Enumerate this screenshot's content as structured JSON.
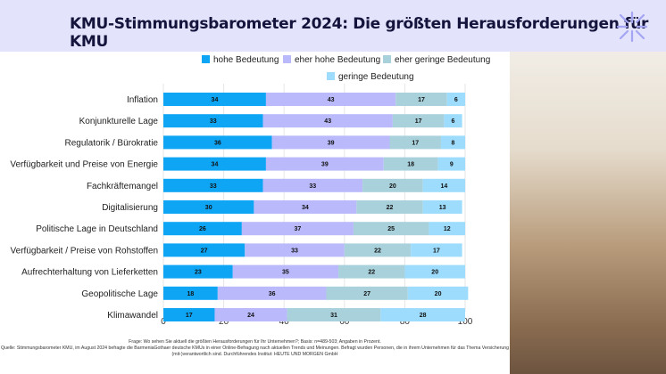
{
  "title": "KMU-Stimmungsbarometer 2024: Die größten Herausforderungen für KMU",
  "colors": {
    "header": "#e3e3fb",
    "hohe": "#0ea5f5",
    "eher_hohe": "#b9b9fb",
    "eher_geringe": "#a9d1dc",
    "geringe": "#9ddcfc"
  },
  "chart_data": {
    "type": "bar",
    "orientation": "horizontal-stacked",
    "categories": [
      "Inflation",
      "Konjunkturelle Lage",
      "Regulatorik / Bürokratie",
      "Verfügbarkeit und Preise von Energie",
      "Fachkräftemangel",
      "Digitalisierung",
      "Politische Lage in Deutschland",
      "Verfügbarkeit / Preise von Rohstoffen",
      "Aufrechterhaltung von Lieferketten",
      "Geopolitische Lage",
      "Klimawandel"
    ],
    "series": [
      {
        "name": "hohe Bedeutung",
        "color": "#0ea5f5",
        "values": [
          34,
          33,
          36,
          34,
          33,
          30,
          26,
          27,
          23,
          18,
          17
        ]
      },
      {
        "name": "eher hohe Bedeutung",
        "color": "#b9b9fb",
        "values": [
          43,
          43,
          39,
          39,
          33,
          34,
          37,
          33,
          35,
          36,
          24
        ]
      },
      {
        "name": "eher geringe Bedeutung",
        "color": "#a9d1dc",
        "values": [
          17,
          17,
          17,
          18,
          20,
          22,
          25,
          22,
          22,
          27,
          31
        ]
      },
      {
        "name": "geringe Bedeutung",
        "color": "#9ddcfc",
        "values": [
          6,
          6,
          8,
          9,
          14,
          13,
          12,
          17,
          20,
          20,
          28
        ]
      }
    ],
    "xlim": [
      0,
      120
    ],
    "xticks": [
      "0",
      "20",
      "40",
      "60",
      "80",
      "100",
      "120"
    ],
    "grid": true,
    "legend": "top"
  },
  "footer": {
    "line1": "Frage: Wo sehen Sie aktuell die größten Herausforderungen für Ihr Unternehmen?; Basis: n=489-503; Angaben in Prozent.",
    "line2": "Quelle: Stimmungsbarometer KMU, im August 2024 befragte die BarmeniaGothaer deutsche KMUs in einer Online-Befragung nach aktuellen Trends und Meinungen. Befragt wurden Personen, die in ihrem Unternehmen für das Thema Versicherung (mit-)verantwortlich sind. Durchführendes Institut: HEUTE UND MORGEN GmbH"
  }
}
